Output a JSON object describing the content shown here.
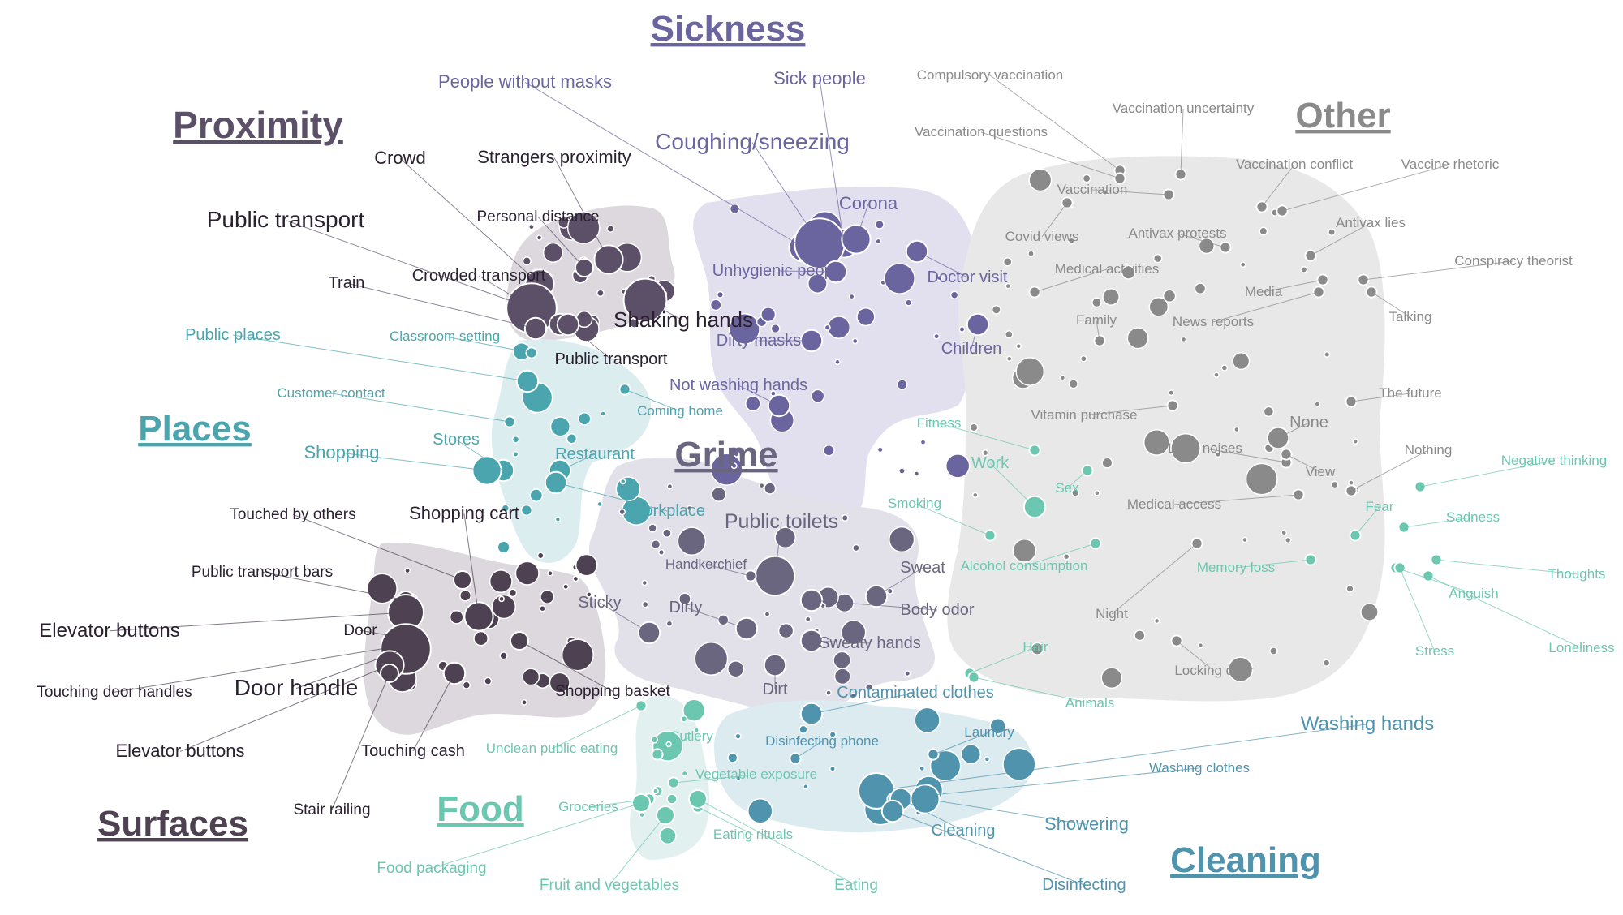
{
  "clusters": [
    {
      "key": "sickness",
      "title": "Sickness",
      "color": "#6b659f",
      "region": "#e2e0ee"
    },
    {
      "key": "proximity",
      "title": "Proximity",
      "color": "#5c4f68",
      "region": "#dcd8de"
    },
    {
      "key": "other",
      "title": "Other",
      "color": "#8a8a8a",
      "region": "#e8e8e8"
    },
    {
      "key": "places",
      "title": "Places",
      "color": "#4ba5ae",
      "region": "#dcedf0"
    },
    {
      "key": "grime",
      "title": "Grime",
      "color": "#6a6680",
      "region": "#e2e0e8"
    },
    {
      "key": "surfaces",
      "title": "Surfaces",
      "color": "#4d4152",
      "region": "#dcd8de"
    },
    {
      "key": "food",
      "title": "Food",
      "color": "#6cc7b0",
      "region": "#e2f1ef"
    },
    {
      "key": "cleaning",
      "title": "Cleaning",
      "color": "#4f93ad",
      "region": "#dcebf0"
    }
  ],
  "labels": [
    {
      "text": "People without masks",
      "cluster": "sickness"
    },
    {
      "text": "Sick people",
      "cluster": "sickness"
    },
    {
      "text": "Coughing/sneezing",
      "cluster": "sickness"
    },
    {
      "text": "Corona",
      "cluster": "sickness"
    },
    {
      "text": "Unhygienic people",
      "cluster": "sickness"
    },
    {
      "text": "Doctor visit",
      "cluster": "sickness"
    },
    {
      "text": "Dirty masks",
      "cluster": "sickness"
    },
    {
      "text": "Children",
      "cluster": "sickness"
    },
    {
      "text": "Not washing hands",
      "cluster": "sickness"
    },
    {
      "text": "Crowd",
      "cluster": "proximity"
    },
    {
      "text": "Strangers proximity",
      "cluster": "proximity"
    },
    {
      "text": "Personal distance",
      "cluster": "proximity"
    },
    {
      "text": "Public transport",
      "cluster": "proximity"
    },
    {
      "text": "Crowded transport",
      "cluster": "proximity"
    },
    {
      "text": "Train",
      "cluster": "proximity"
    },
    {
      "text": "Shaking hands",
      "cluster": "proximity"
    },
    {
      "text": "Public transport",
      "cluster": "proximity"
    },
    {
      "text": "Compulsory vaccination",
      "cluster": "other"
    },
    {
      "text": "Vaccination uncertainty",
      "cluster": "other"
    },
    {
      "text": "Vaccination questions",
      "cluster": "other"
    },
    {
      "text": "Vaccination conflict",
      "cluster": "other"
    },
    {
      "text": "Vaccine rhetoric",
      "cluster": "other"
    },
    {
      "text": "Vaccination",
      "cluster": "other"
    },
    {
      "text": "Antivax lies",
      "cluster": "other"
    },
    {
      "text": "Covid views",
      "cluster": "other"
    },
    {
      "text": "Antivax protests",
      "cluster": "other"
    },
    {
      "text": "Conspiracy theorist",
      "cluster": "other"
    },
    {
      "text": "Medical activities",
      "cluster": "other"
    },
    {
      "text": "Media",
      "cluster": "other"
    },
    {
      "text": "Talking",
      "cluster": "other"
    },
    {
      "text": "Family",
      "cluster": "other"
    },
    {
      "text": "News reports",
      "cluster": "other"
    },
    {
      "text": "The future",
      "cluster": "other"
    },
    {
      "text": "Vitamin purchase",
      "cluster": "other"
    },
    {
      "text": "None",
      "cluster": "other"
    },
    {
      "text": "Loud noises",
      "cluster": "other"
    },
    {
      "text": "Nothing",
      "cluster": "other"
    },
    {
      "text": "View",
      "cluster": "other"
    },
    {
      "text": "Medical access",
      "cluster": "other"
    },
    {
      "text": "Night",
      "cluster": "other"
    },
    {
      "text": "Locking door",
      "cluster": "other"
    },
    {
      "text": "Fitness",
      "cluster": "food"
    },
    {
      "text": "Work",
      "cluster": "food"
    },
    {
      "text": "Sex",
      "cluster": "food"
    },
    {
      "text": "Smoking",
      "cluster": "food"
    },
    {
      "text": "Alcohol consumption",
      "cluster": "food"
    },
    {
      "text": "Memory loss",
      "cluster": "food"
    },
    {
      "text": "Fear",
      "cluster": "food"
    },
    {
      "text": "Negative thinking",
      "cluster": "food"
    },
    {
      "text": "Sadness",
      "cluster": "food"
    },
    {
      "text": "Thoughts",
      "cluster": "food"
    },
    {
      "text": "Anguish",
      "cluster": "food"
    },
    {
      "text": "Loneliness",
      "cluster": "food"
    },
    {
      "text": "Stress",
      "cluster": "food"
    },
    {
      "text": "Hair",
      "cluster": "food"
    },
    {
      "text": "Animals",
      "cluster": "food"
    },
    {
      "text": "Public places",
      "cluster": "places"
    },
    {
      "text": "Classroom setting",
      "cluster": "places"
    },
    {
      "text": "Customer contact",
      "cluster": "places"
    },
    {
      "text": "Coming home",
      "cluster": "places"
    },
    {
      "text": "Stores",
      "cluster": "places"
    },
    {
      "text": "Shopping",
      "cluster": "places"
    },
    {
      "text": "Restaurant",
      "cluster": "places"
    },
    {
      "text": "Workplace",
      "cluster": "places"
    },
    {
      "text": "Public toilets",
      "cluster": "grime"
    },
    {
      "text": "Handkerchief",
      "cluster": "grime"
    },
    {
      "text": "Sweat",
      "cluster": "grime"
    },
    {
      "text": "Sticky",
      "cluster": "grime"
    },
    {
      "text": "Dirty",
      "cluster": "grime"
    },
    {
      "text": "Body odor",
      "cluster": "grime"
    },
    {
      "text": "Sweaty hands",
      "cluster": "grime"
    },
    {
      "text": "Dirt",
      "cluster": "grime"
    },
    {
      "text": "Touched by others",
      "cluster": "surfaces"
    },
    {
      "text": "Shopping cart",
      "cluster": "surfaces"
    },
    {
      "text": "Public transport bars",
      "cluster": "surfaces"
    },
    {
      "text": "Elevator buttons",
      "cluster": "surfaces"
    },
    {
      "text": "Door",
      "cluster": "surfaces"
    },
    {
      "text": "Touching door handles",
      "cluster": "surfaces"
    },
    {
      "text": "Door handle",
      "cluster": "surfaces"
    },
    {
      "text": "Shopping basket",
      "cluster": "surfaces"
    },
    {
      "text": "Elevator buttons",
      "cluster": "surfaces"
    },
    {
      "text": "Touching cash",
      "cluster": "surfaces"
    },
    {
      "text": "Stair railing",
      "cluster": "surfaces"
    },
    {
      "text": "Unclean public eating",
      "cluster": "food"
    },
    {
      "text": "Cutlery",
      "cluster": "food"
    },
    {
      "text": "Vegetable exposure",
      "cluster": "food"
    },
    {
      "text": "Groceries",
      "cluster": "food"
    },
    {
      "text": "Eating rituals",
      "cluster": "food"
    },
    {
      "text": "Food packaging",
      "cluster": "food"
    },
    {
      "text": "Fruit and vegetables",
      "cluster": "food"
    },
    {
      "text": "Eating",
      "cluster": "food"
    },
    {
      "text": "Contaminated clothes",
      "cluster": "cleaning"
    },
    {
      "text": "Disinfecting phone",
      "cluster": "cleaning"
    },
    {
      "text": "Laundry",
      "cluster": "cleaning"
    },
    {
      "text": "Washing hands",
      "cluster": "cleaning"
    },
    {
      "text": "Washing clothes",
      "cluster": "cleaning"
    },
    {
      "text": "Cleaning",
      "cluster": "cleaning"
    },
    {
      "text": "Showering",
      "cluster": "cleaning"
    },
    {
      "text": "Disinfecting",
      "cluster": "cleaning"
    }
  ]
}
